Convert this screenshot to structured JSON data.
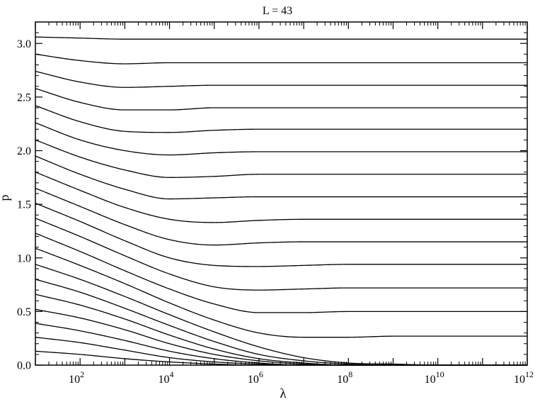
{
  "chart_data": {
    "type": "line",
    "title": "L = 43",
    "xlabel": "λ",
    "ylabel": "p",
    "xscale": "log",
    "xlim": [
      10,
      1000000000000
    ],
    "ylim": [
      0,
      3.2
    ],
    "x_ticks": [
      {
        "value": 100,
        "base": "10",
        "exp": "2"
      },
      {
        "value": 10000,
        "base": "10",
        "exp": "4"
      },
      {
        "value": 1000000,
        "base": "10",
        "exp": "6"
      },
      {
        "value": 100000000,
        "base": "10",
        "exp": "8"
      },
      {
        "value": 10000000000,
        "base": "10",
        "exp": "10"
      },
      {
        "value": 1000000000000,
        "base": "10",
        "exp": "12"
      }
    ],
    "y_ticks": [
      {
        "value": 0.0,
        "label": "0.0"
      },
      {
        "value": 0.5,
        "label": "0.5"
      },
      {
        "value": 1.0,
        "label": "1.0"
      },
      {
        "value": 1.5,
        "label": "1.5"
      },
      {
        "value": 2.0,
        "label": "2.0"
      },
      {
        "value": 2.5,
        "label": "2.5"
      },
      {
        "value": 3.0,
        "label": "3.0"
      }
    ],
    "line_color": "#000000",
    "grid": false,
    "legend": "none",
    "x": [
      10,
      100,
      1000,
      10000,
      100000,
      1000000,
      10000000,
      100000000,
      1000000000,
      10000000000,
      1000000000000
    ],
    "series": [
      {
        "values": [
          3.06,
          3.05,
          3.04,
          3.04,
          3.04,
          3.04,
          3.04,
          3.04,
          3.04,
          3.04,
          3.04
        ]
      },
      {
        "values": [
          2.9,
          2.84,
          2.81,
          2.82,
          2.82,
          2.82,
          2.82,
          2.82,
          2.82,
          2.82,
          2.82
        ]
      },
      {
        "values": [
          2.74,
          2.64,
          2.59,
          2.6,
          2.61,
          2.61,
          2.61,
          2.61,
          2.61,
          2.61,
          2.61
        ]
      },
      {
        "values": [
          2.58,
          2.45,
          2.38,
          2.38,
          2.4,
          2.4,
          2.4,
          2.4,
          2.4,
          2.4,
          2.4
        ]
      },
      {
        "values": [
          2.42,
          2.27,
          2.18,
          2.17,
          2.19,
          2.2,
          2.2,
          2.2,
          2.2,
          2.2,
          2.2
        ]
      },
      {
        "values": [
          2.26,
          2.1,
          2.0,
          1.96,
          1.98,
          1.99,
          1.99,
          1.99,
          1.99,
          1.99,
          1.99
        ]
      },
      {
        "values": [
          2.1,
          1.94,
          1.82,
          1.75,
          1.76,
          1.78,
          1.78,
          1.78,
          1.78,
          1.78,
          1.78
        ]
      },
      {
        "values": [
          1.95,
          1.78,
          1.64,
          1.55,
          1.56,
          1.57,
          1.57,
          1.57,
          1.57,
          1.57,
          1.57
        ]
      },
      {
        "values": [
          1.8,
          1.63,
          1.47,
          1.36,
          1.33,
          1.35,
          1.36,
          1.36,
          1.36,
          1.36,
          1.36
        ]
      },
      {
        "values": [
          1.65,
          1.48,
          1.31,
          1.17,
          1.12,
          1.14,
          1.15,
          1.15,
          1.15,
          1.15,
          1.15
        ]
      },
      {
        "values": [
          1.51,
          1.34,
          1.16,
          1.0,
          0.93,
          0.92,
          0.93,
          0.94,
          0.94,
          0.94,
          0.94
        ]
      },
      {
        "values": [
          1.37,
          1.2,
          1.02,
          0.85,
          0.73,
          0.7,
          0.71,
          0.72,
          0.72,
          0.72,
          0.72
        ]
      },
      {
        "values": [
          1.23,
          1.06,
          0.88,
          0.71,
          0.57,
          0.49,
          0.49,
          0.5,
          0.5,
          0.5,
          0.5
        ]
      },
      {
        "values": [
          1.09,
          0.93,
          0.76,
          0.58,
          0.42,
          0.3,
          0.26,
          0.26,
          0.27,
          0.27,
          0.27
        ]
      },
      {
        "values": [
          0.94,
          0.8,
          0.64,
          0.47,
          0.31,
          0.17,
          0.07,
          0.02,
          0.01,
          0.0,
          0.0
        ]
      },
      {
        "values": [
          0.8,
          0.68,
          0.53,
          0.37,
          0.22,
          0.1,
          0.04,
          0.01,
          0.0,
          0.0,
          0.0
        ]
      },
      {
        "values": [
          0.66,
          0.56,
          0.43,
          0.28,
          0.15,
          0.06,
          0.02,
          0.0,
          0.0,
          0.0,
          0.0
        ]
      },
      {
        "values": [
          0.52,
          0.44,
          0.33,
          0.2,
          0.1,
          0.04,
          0.01,
          0.0,
          0.0,
          0.0,
          0.0
        ]
      },
      {
        "values": [
          0.39,
          0.32,
          0.23,
          0.13,
          0.06,
          0.02,
          0.0,
          0.0,
          0.0,
          0.0,
          0.0
        ]
      },
      {
        "values": [
          0.26,
          0.21,
          0.14,
          0.07,
          0.03,
          0.01,
          0.0,
          0.0,
          0.0,
          0.0,
          0.0
        ]
      },
      {
        "values": [
          0.13,
          0.1,
          0.06,
          0.03,
          0.01,
          0.0,
          0.0,
          0.0,
          0.0,
          0.0,
          0.0
        ]
      }
    ]
  }
}
